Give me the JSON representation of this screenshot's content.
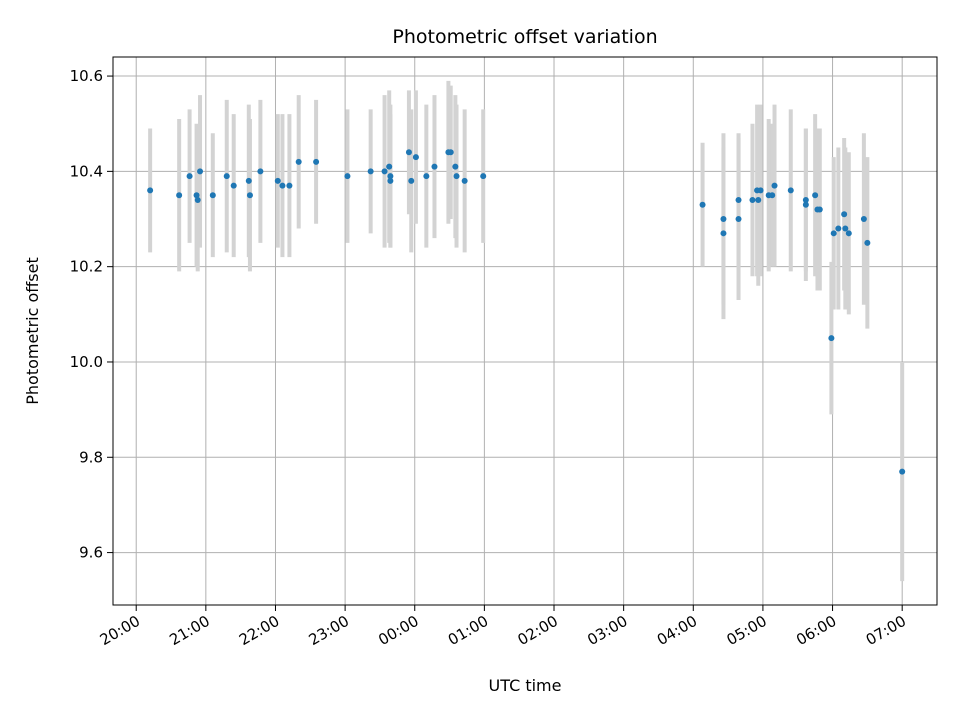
{
  "chart_data": {
    "type": "scatter",
    "title": "Photometric offset variation",
    "xlabel": "UTC time",
    "ylabel": "Photometric offset",
    "grid": true,
    "xlim": [
      "19:40",
      "07:30"
    ],
    "ylim": [
      9.49,
      10.64
    ],
    "x_ticks": [
      "20:00",
      "21:00",
      "22:00",
      "23:00",
      "00:00",
      "01:00",
      "02:00",
      "03:00",
      "04:00",
      "05:00",
      "06:00",
      "07:00"
    ],
    "y_ticks": [
      "9.6",
      "9.8",
      "10.0",
      "10.2",
      "10.4",
      "10.6"
    ],
    "colors": {
      "points": "#1f77b4",
      "errorbars": "#d3d3d3"
    },
    "series": [
      {
        "x": [
          "20:12",
          "20:37",
          "20:46",
          "20:52",
          "20:53",
          "20:55",
          "21:06",
          "21:18",
          "21:24",
          "21:37",
          "21:38",
          "21:47",
          "22:02",
          "22:06",
          "22:12",
          "22:20",
          "22:35",
          "23:02",
          "23:22",
          "23:34",
          "23:38",
          "23:39",
          "23:39",
          "23:55",
          "23:57",
          "24:01",
          "24:10",
          "24:17",
          "24:29",
          "24:31",
          "24:35",
          "24:36",
          "24:43",
          "24:59",
          "04:08",
          "04:26",
          "04:26",
          "04:39",
          "04:39",
          "04:51",
          "04:55",
          "04:56",
          "04:58",
          "05:05",
          "05:08",
          "05:10",
          "05:24",
          "05:37",
          "05:37",
          "05:45",
          "05:47",
          "05:49",
          "05:59",
          "06:01",
          "06:05",
          "06:10",
          "06:11",
          "06:14",
          "06:27",
          "06:30",
          "07:00"
        ],
        "y": [
          10.36,
          10.35,
          10.39,
          10.35,
          10.34,
          10.4,
          10.35,
          10.39,
          10.37,
          10.38,
          10.35,
          10.4,
          10.38,
          10.37,
          10.37,
          10.42,
          10.42,
          10.39,
          10.4,
          10.4,
          10.41,
          10.38,
          10.39,
          10.44,
          10.38,
          10.43,
          10.39,
          10.41,
          10.44,
          10.44,
          10.41,
          10.39,
          10.38,
          10.39,
          10.33,
          10.27,
          10.3,
          10.34,
          10.3,
          10.34,
          10.36,
          10.34,
          10.36,
          10.35,
          10.35,
          10.37,
          10.36,
          10.34,
          10.33,
          10.35,
          10.32,
          10.32,
          10.05,
          10.27,
          10.28,
          10.31,
          10.28,
          10.27,
          10.3,
          10.25,
          9.77
        ],
        "yerr": [
          0.13,
          0.16,
          0.14,
          0.15,
          0.15,
          0.16,
          0.13,
          0.16,
          0.15,
          0.16,
          0.16,
          0.15,
          0.14,
          0.15,
          0.15,
          0.14,
          0.13,
          0.14,
          0.13,
          0.16,
          0.16,
          0.14,
          0.15,
          0.13,
          0.15,
          0.14,
          0.15,
          0.15,
          0.15,
          0.14,
          0.15,
          0.15,
          0.15,
          0.14,
          0.13,
          0.18,
          0.18,
          0.14,
          0.17,
          0.16,
          0.18,
          0.18,
          0.18,
          0.16,
          0.15,
          0.17,
          0.17,
          0.15,
          0.16,
          0.17,
          0.17,
          0.17,
          0.16,
          0.16,
          0.17,
          0.16,
          0.17,
          0.17,
          0.18,
          0.18,
          0.23
        ]
      }
    ]
  }
}
